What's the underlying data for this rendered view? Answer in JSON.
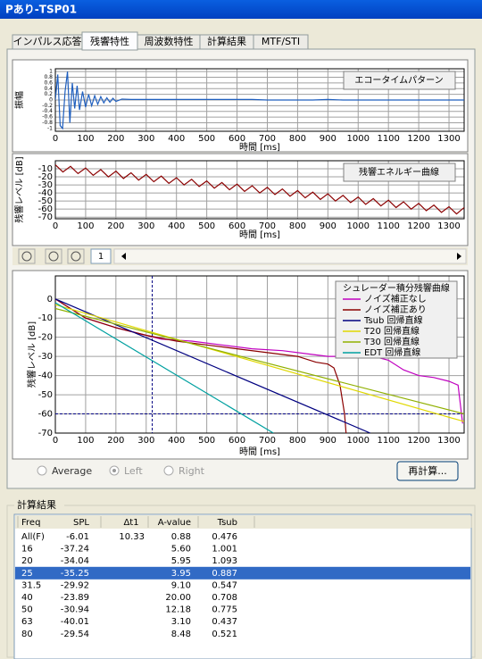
{
  "window": {
    "title": "Pあり-TSP01"
  },
  "tabs": {
    "items": [
      "インパルス応答",
      "残響特性",
      "周波数特性",
      "計算結果",
      "MTF/STI"
    ],
    "selected": 1
  },
  "toolbar": {
    "page": "1"
  },
  "chart_data": [
    {
      "type": "line",
      "button": "エコータイムパターン",
      "ylabel": "振幅",
      "xlabel": "時間 [ms]",
      "xlim": [
        0,
        1350
      ],
      "xticks": [
        0,
        100,
        200,
        300,
        400,
        500,
        600,
        700,
        800,
        900,
        1000,
        1100,
        1200,
        1300
      ],
      "ylim": [
        -1.1,
        1.1
      ],
      "yticks": [
        1,
        0.8,
        0.6,
        0.4,
        0.2,
        0,
        -0.2,
        -0.4,
        -0.6,
        -0.8,
        -1
      ],
      "grid": true,
      "series": [
        {
          "color": "#1f5fbf",
          "x": [
            0,
            8,
            16,
            24,
            32,
            40,
            48,
            56,
            64,
            72,
            80,
            90,
            100,
            110,
            120,
            130,
            140,
            150,
            160,
            170,
            180,
            190,
            200,
            220,
            250,
            300,
            350,
            400,
            450,
            500,
            550,
            600,
            650,
            700,
            750,
            800,
            850,
            900,
            950,
            1000,
            1350
          ],
          "values": [
            0,
            0.9,
            -0.9,
            -1,
            0.3,
            1,
            -0.8,
            0.6,
            -0.3,
            0.5,
            -0.35,
            0.3,
            -0.25,
            0.2,
            -0.2,
            0.15,
            -0.15,
            0.12,
            -0.1,
            0.08,
            -0.08,
            0.06,
            -0.05,
            0.03,
            0.02,
            0.02,
            0.02,
            0.02,
            0.02,
            0.02,
            0.02,
            0.02,
            0.02,
            0,
            0,
            0,
            0,
            0.02,
            0,
            0,
            0
          ]
        }
      ]
    },
    {
      "type": "line",
      "button": "残響エネルギー曲線",
      "ylabel": "残響レベル [dB]",
      "xlabel": "時間 [ms]",
      "xlim": [
        0,
        1350
      ],
      "xticks": [
        0,
        100,
        200,
        300,
        400,
        500,
        600,
        700,
        800,
        900,
        1000,
        1100,
        1200,
        1300
      ],
      "ylim": [
        -72,
        0
      ],
      "yticks": [
        -10,
        -20,
        -30,
        -40,
        -50,
        -60,
        -70
      ],
      "grid": true,
      "series": [
        {
          "color": "#8b0000",
          "x": [
            0,
            25,
            50,
            75,
            100,
            125,
            150,
            175,
            200,
            225,
            250,
            275,
            300,
            325,
            350,
            375,
            400,
            425,
            450,
            475,
            500,
            525,
            550,
            575,
            600,
            625,
            650,
            675,
            700,
            725,
            750,
            775,
            800,
            825,
            850,
            875,
            900,
            925,
            950,
            975,
            1000,
            1025,
            1050,
            1075,
            1100,
            1125,
            1150,
            1175,
            1200,
            1225,
            1250,
            1275,
            1300,
            1325,
            1350
          ],
          "values": [
            -5,
            -14,
            -7,
            -16,
            -9,
            -18,
            -11,
            -20,
            -13,
            -22,
            -15,
            -24,
            -17,
            -26,
            -19,
            -28,
            -21,
            -30,
            -23,
            -32,
            -25,
            -34,
            -27,
            -36,
            -29,
            -38,
            -31,
            -40,
            -33,
            -42,
            -35,
            -44,
            -37,
            -46,
            -39,
            -48,
            -41,
            -50,
            -43,
            -52,
            -45,
            -54,
            -47,
            -56,
            -49,
            -58,
            -51,
            -60,
            -53,
            -62,
            -55,
            -64,
            -57,
            -66,
            -58
          ]
        }
      ]
    },
    {
      "type": "line",
      "legend_title": "シュレーダー積分残響曲線",
      "ylabel": "残響レベル [dB]",
      "xlabel": "時間 [ms]",
      "xlim": [
        0,
        1350
      ],
      "xticks": [
        0,
        100,
        200,
        300,
        400,
        500,
        600,
        700,
        800,
        900,
        1000,
        1100,
        1200,
        1300
      ],
      "ylim": [
        -70,
        12
      ],
      "yticks": [
        0,
        -10,
        -20,
        -30,
        -40,
        -50,
        -60,
        -70
      ],
      "grid": true,
      "cursor_x": 320,
      "cursor_y": -60,
      "series": [
        {
          "name": "ノイズ補正なし",
          "color": "#c000c0",
          "x": [
            0,
            30,
            100,
            200,
            300,
            350,
            450,
            550,
            650,
            750,
            850,
            900,
            950,
            1000,
            1050,
            1100,
            1150,
            1200,
            1250,
            1300,
            1330,
            1345
          ],
          "values": [
            0,
            -3,
            -10,
            -15,
            -19,
            -21,
            -22,
            -24,
            -26,
            -27,
            -29,
            -30,
            -30,
            -30,
            -30,
            -32,
            -37,
            -40,
            -41,
            -43,
            -45,
            -65
          ]
        },
        {
          "name": "ノイズ補正あり",
          "color": "#8b0000",
          "x": [
            0,
            30,
            100,
            200,
            300,
            400,
            500,
            600,
            700,
            800,
            860,
            900,
            920,
            940,
            955,
            960
          ],
          "values": [
            0,
            -3,
            -10,
            -15,
            -19,
            -22,
            -24,
            -26,
            -28,
            -30,
            -33,
            -34,
            -36,
            -45,
            -60,
            -70
          ]
        },
        {
          "name": "Tsub 回帰直線",
          "color": "#000080",
          "x": [
            0,
            1040
          ],
          "values": [
            0,
            -70
          ]
        },
        {
          "name": "T20 回帰直線",
          "color": "#e0d800",
          "x": [
            0,
            1350
          ],
          "values": [
            -3,
            -64
          ]
        },
        {
          "name": "T30 回帰直線",
          "color": "#90b000",
          "x": [
            0,
            1350
          ],
          "values": [
            -5,
            -60
          ]
        },
        {
          "name": "EDT 回帰直線",
          "color": "#00a0a0",
          "x": [
            0,
            720
          ],
          "values": [
            -2,
            -70
          ]
        }
      ]
    }
  ],
  "channel": {
    "options": [
      "Average",
      "Left",
      "Right"
    ],
    "selected": 1
  },
  "recalc_button": "再計算...",
  "results": {
    "title": "計算結果",
    "columns": [
      "Freq",
      "SPL",
      "Δt1",
      "A-value",
      "Tsub"
    ],
    "selected_row": 3,
    "rows": [
      [
        "All(F)",
        "-6.01",
        "10.33",
        "0.88",
        "0.476"
      ],
      [
        "16",
        "-37.24",
        null,
        "5.60",
        "1.001"
      ],
      [
        "20",
        "-34.04",
        null,
        "5.95",
        "1.093"
      ],
      [
        "25",
        "-35.25",
        null,
        "3.95",
        "0.887"
      ],
      [
        "31.5",
        "-29.92",
        null,
        "9.10",
        "0.547"
      ],
      [
        "40",
        "-23.89",
        null,
        "20.00",
        "0.708"
      ],
      [
        "50",
        "-30.94",
        null,
        "12.18",
        "0.775"
      ],
      [
        "63",
        "-40.01",
        null,
        "3.10",
        "0.437"
      ],
      [
        "80",
        "-29.54",
        null,
        "8.48",
        "0.521"
      ]
    ]
  }
}
